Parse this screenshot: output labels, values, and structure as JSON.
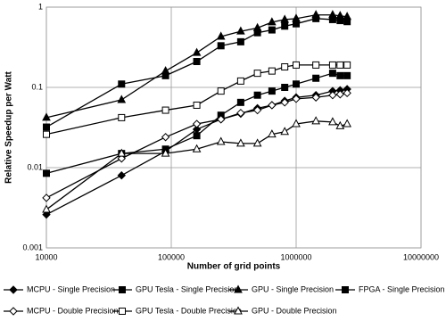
{
  "chart_data": {
    "type": "line",
    "x_label": "Number of grid points",
    "y_label": "Relative Speedup per Watt",
    "x": [
      10000,
      40000,
      90000,
      160000,
      250000,
      360000,
      490000,
      640000,
      810000,
      1000000,
      1440000,
      1960000,
      2250000,
      2560000
    ],
    "xlim": [
      10000,
      10000000
    ],
    "xticks": [
      10000,
      100000,
      1000000,
      10000000
    ],
    "ylim": [
      0.001,
      1
    ],
    "yticks": [
      0.001,
      0.01,
      0.1,
      1
    ],
    "xscale": "log",
    "yscale": "log",
    "grid": true,
    "series": [
      {
        "name": "MCPU - Single Precision",
        "color": "#000000",
        "marker": "diamond",
        "filled": true,
        "values": [
          0.0026,
          0.008,
          0.016,
          0.03,
          0.04,
          0.047,
          0.055,
          0.06,
          0.068,
          0.075,
          0.08,
          0.09,
          0.092,
          0.095
        ]
      },
      {
        "name": "GPU Tesla - Single Precision",
        "color": "#000000",
        "marker": "square",
        "filled": true,
        "values": [
          0.032,
          0.11,
          0.14,
          0.21,
          0.33,
          0.37,
          0.48,
          0.52,
          0.58,
          0.62,
          0.72,
          0.7,
          0.68,
          0.66
        ]
      },
      {
        "name": "GPU - Single Precision",
        "color": "#000000",
        "marker": "triangle",
        "filled": true,
        "values": [
          0.042,
          0.07,
          0.16,
          0.27,
          0.43,
          0.5,
          0.55,
          0.65,
          0.7,
          0.72,
          0.8,
          0.8,
          0.78,
          0.76
        ]
      },
      {
        "name": "FPGA - Single Precision",
        "color": "#000000",
        "marker": "square",
        "filled": true,
        "values": [
          0.0085,
          0.015,
          0.017,
          0.025,
          0.045,
          0.065,
          0.08,
          0.09,
          0.1,
          0.11,
          0.13,
          0.15,
          0.14,
          0.14
        ]
      },
      {
        "name": "MCPU - Double Precision",
        "color": "#000000",
        "marker": "diamond",
        "filled": false,
        "values": [
          0.0042,
          0.013,
          0.024,
          0.035,
          0.04,
          0.048,
          0.052,
          0.06,
          0.065,
          0.072,
          0.075,
          0.08,
          0.082,
          0.085
        ]
      },
      {
        "name": "GPU Tesla - Double Precision",
        "color": "#000000",
        "marker": "square",
        "filled": false,
        "values": [
          0.026,
          0.042,
          0.052,
          0.06,
          0.09,
          0.12,
          0.15,
          0.16,
          0.18,
          0.19,
          0.19,
          0.19,
          0.19,
          0.19
        ]
      },
      {
        "name": "GPU - Double Precision",
        "color": "#000000",
        "marker": "triangle",
        "filled": false,
        "values": [
          0.003,
          0.015,
          0.015,
          0.017,
          0.021,
          0.02,
          0.02,
          0.026,
          0.028,
          0.035,
          0.038,
          0.037,
          0.033,
          0.035
        ]
      }
    ]
  }
}
